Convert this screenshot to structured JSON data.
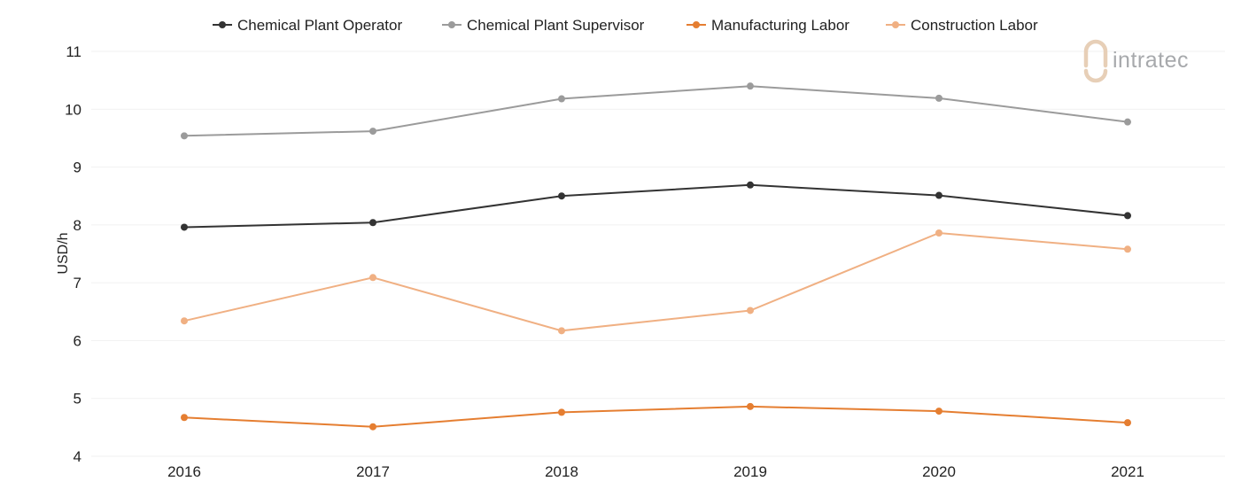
{
  "logo": {
    "text": "intratec"
  },
  "chart_data": {
    "type": "line",
    "title": "",
    "xlabel": "",
    "ylabel": "USD/h",
    "categories": [
      "2016",
      "2017",
      "2018",
      "2019",
      "2020",
      "2021"
    ],
    "ylim": [
      4,
      11
    ],
    "yticks": [
      4,
      5,
      6,
      7,
      8,
      9,
      10,
      11
    ],
    "grid": true,
    "legend_position": "top",
    "series": [
      {
        "name": "Chemical Plant Operator",
        "color": "#333333",
        "values": [
          7.96,
          8.04,
          8.5,
          8.69,
          8.51,
          8.16
        ]
      },
      {
        "name": "Chemical Plant Supervisor",
        "color": "#9b9b9b",
        "values": [
          9.54,
          9.62,
          10.18,
          10.4,
          10.19,
          9.78
        ]
      },
      {
        "name": "Manufacturing Labor",
        "color": "#e57e31",
        "values": [
          4.67,
          4.51,
          4.76,
          4.86,
          4.78,
          4.58
        ]
      },
      {
        "name": "Construction Labor",
        "color": "#f0b083",
        "values": [
          6.34,
          7.09,
          6.17,
          6.52,
          7.86,
          7.58
        ]
      }
    ]
  }
}
